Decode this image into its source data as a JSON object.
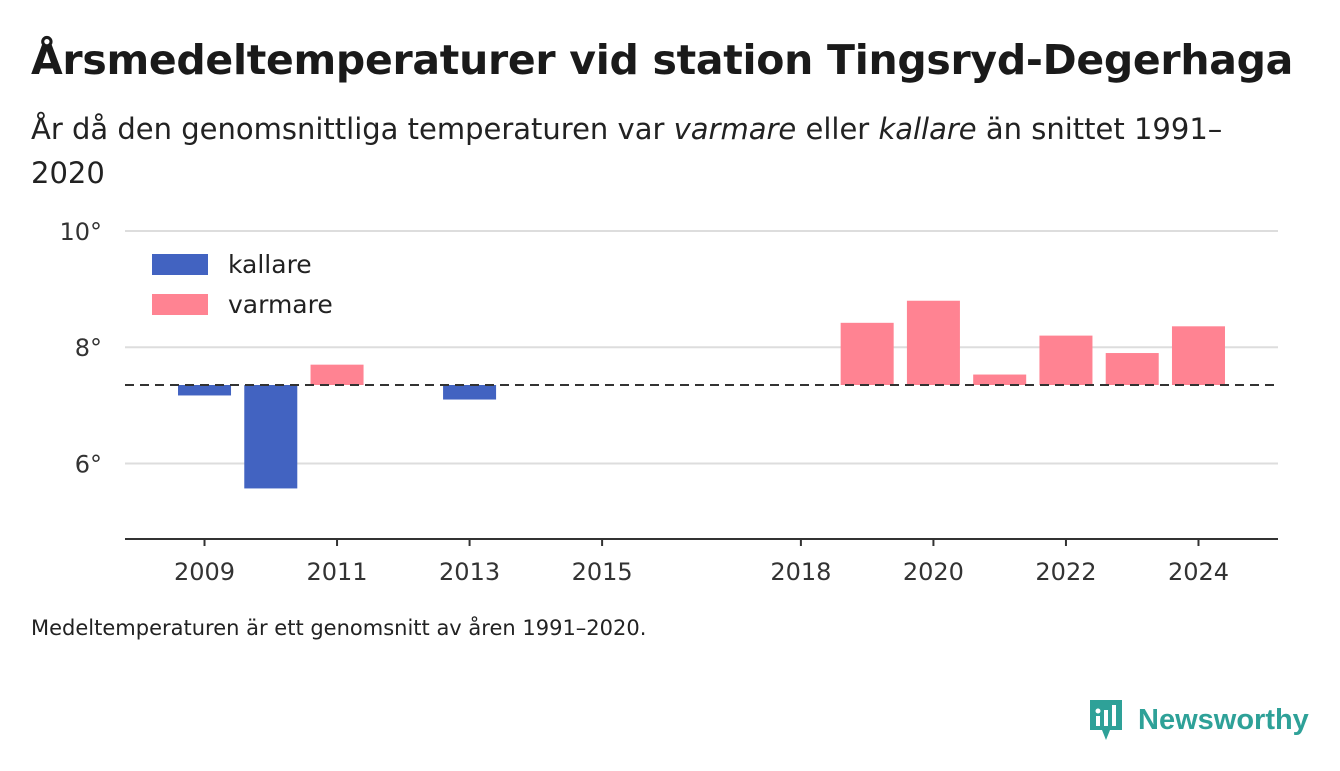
{
  "header": {
    "title": "Årsmedeltemperaturer vid station Tingsryd-Degerhaga",
    "subtitle_pre": "År då den genomsnittliga temperaturen var ",
    "subtitle_warm": "varmare",
    "subtitle_mid": " eller ",
    "subtitle_cold": "kallare",
    "subtitle_post": " än snittet 1991–2020"
  },
  "footnote": "Medeltemperaturen är ett genomsnitt av åren 1991–2020.",
  "brand": {
    "name": "Newsworthy",
    "icon": "newsworthy-logo-icon",
    "color": "#2ea198"
  },
  "colors": {
    "kallare": "#4263c1",
    "varmare": "#ff8392",
    "baseline": "#333333",
    "grid": "#dddddd"
  },
  "chart_data": {
    "type": "bar",
    "baseline": 7.35,
    "ylim": [
      4.7,
      10
    ],
    "yticks": [
      6,
      8,
      10
    ],
    "ytick_labels": [
      "6°",
      "8°",
      "10°"
    ],
    "xlim": [
      2007.8,
      2025.2
    ],
    "xticks": [
      2009,
      2011,
      2013,
      2015,
      2018,
      2020,
      2022,
      2024
    ],
    "xtick_labels": [
      "2009",
      "2011",
      "2013",
      "2015",
      "2018",
      "2020",
      "2022",
      "2024"
    ],
    "legend": {
      "position": "top-left",
      "entries": [
        {
          "name": "kallare",
          "color": "#4263c1"
        },
        {
          "name": "varmare",
          "color": "#ff8392"
        }
      ]
    },
    "series": [
      {
        "name": "kallare",
        "x": [
          2009,
          2010,
          2013
        ],
        "values": [
          7.17,
          5.57,
          7.1
        ]
      },
      {
        "name": "varmare",
        "x": [
          2011,
          2019,
          2020,
          2021,
          2022,
          2023,
          2024
        ],
        "values": [
          7.7,
          8.42,
          8.8,
          7.53,
          8.2,
          7.9,
          8.36
        ]
      }
    ]
  }
}
